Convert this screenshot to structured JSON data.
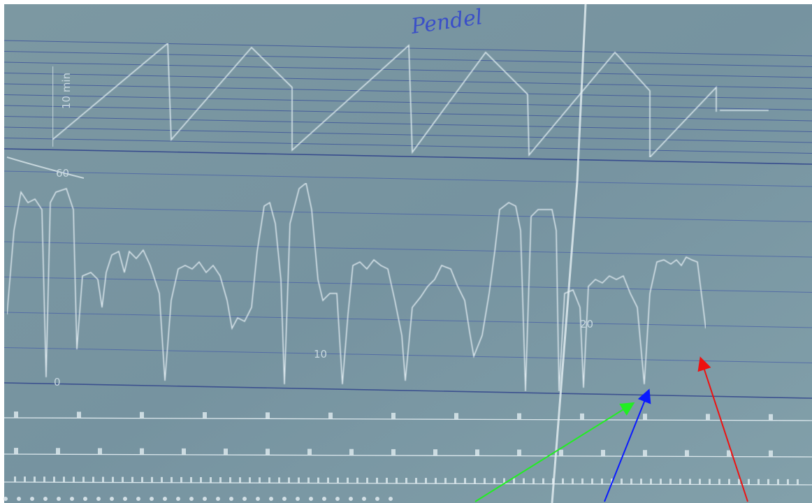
{
  "handwriting": "Pendel",
  "time_label": "10 min",
  "scale_labels": {
    "top": "60",
    "bottom": "0"
  },
  "count_labels": [
    "10",
    "20"
  ]
}
